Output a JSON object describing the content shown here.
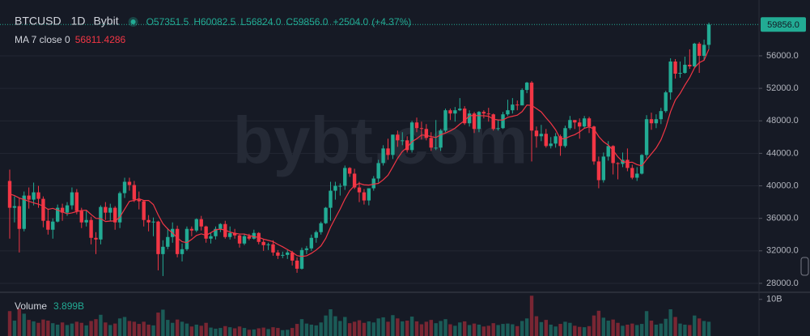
{
  "chart_data": {
    "type": "candlestick",
    "symbol": "BTCUSD",
    "interval": "1D",
    "exchange": "Bybit",
    "watermark": "bybt.com",
    "legend": {
      "open": {
        "value": 57351.5,
        "label": "O57351.5"
      },
      "high": {
        "value": 60082.5,
        "label": "H60082.5"
      },
      "low": {
        "value": 56824.0,
        "label": "L56824.0"
      },
      "close": {
        "value": 59856.0,
        "label": "C59856.0"
      },
      "change": {
        "value": 2504.0,
        "label": "+2504.0"
      },
      "change_pct": {
        "value": 4.37,
        "label": "(+4.37%)"
      }
    },
    "up_color": "#22ab94",
    "down_color": "#f23645",
    "open": [
      40600,
      37300,
      37500,
      34700,
      38800,
      38300,
      39200,
      38400,
      35700,
      34600,
      35600,
      37300,
      36700,
      37600,
      39200,
      36900,
      35500,
      35800,
      33600,
      33400,
      37400,
      36700,
      37300,
      35500,
      39100,
      40500,
      40100,
      38300,
      38100,
      35800,
      35500,
      35600,
      31600,
      32500,
      33700,
      34700,
      31600,
      32200,
      34700,
      34500,
      35900,
      35000,
      33500,
      33800,
      34700,
      35300,
      33700,
      34200,
      33900,
      32900,
      33800,
      33500,
      34200,
      33100,
      32700,
      32800,
      31800,
      31400,
      31500,
      31800,
      30800,
      29800,
      32100,
      32300,
      33600,
      34300,
      35400,
      37300,
      39400,
      40000,
      40000,
      42200,
      41500,
      39800,
      39200,
      38200,
      39700,
      40900,
      42800,
      44600,
      43800,
      46300,
      45600,
      45600,
      44400,
      47800,
      47100,
      47000,
      45900,
      44700,
      44700,
      46800,
      49300,
      48900,
      49300,
      49500,
      47700,
      48900,
      47000,
      49100,
      48900,
      48800,
      47000,
      47100,
      48800,
      49300,
      50000,
      49900,
      51800,
      52700,
      46800,
      46100,
      46400,
      44900,
      45200,
      46100,
      44900,
      47100,
      48100,
      47800,
      47300,
      48300,
      47300,
      43000,
      40700,
      43600,
      44900,
      42800,
      42700,
      43200,
      42200,
      41000,
      41500,
      43800,
      48200,
      47700,
      48200,
      49200,
      51500,
      55300,
      53800,
      53900,
      54900,
      54700,
      57500,
      56000,
      57351.5
    ],
    "high": [
      42000,
      38700,
      38500,
      39300,
      39800,
      40400,
      40000,
      38700,
      37200,
      36000,
      37700,
      37800,
      38000,
      39800,
      39600,
      37300,
      36900,
      36200,
      34300,
      37600,
      38000,
      37800,
      37500,
      39300,
      41000,
      41000,
      40600,
      39300,
      38200,
      36400,
      36100,
      35700,
      33300,
      34800,
      35500,
      35100,
      32900,
      35000,
      35000,
      36000,
      36300,
      35100,
      34200,
      35000,
      35400,
      35700,
      35000,
      34700,
      34000,
      34100,
      34100,
      34600,
      34300,
      33400,
      33000,
      33300,
      32100,
      31900,
      32100,
      32000,
      31200,
      32400,
      32600,
      34000,
      34500,
      35600,
      37400,
      40500,
      40500,
      40300,
      42500,
      42300,
      42100,
      40500,
      39600,
      39700,
      41200,
      43200,
      45000,
      45800,
      46300,
      46800,
      46600,
      46100,
      48000,
      48400,
      47900,
      47600,
      46600,
      48100,
      47000,
      49500,
      49500,
      49700,
      50800,
      49800,
      49300,
      49100,
      49200,
      49300,
      49600,
      48900,
      48100,
      49100,
      50600,
      50800,
      50500,
      52000,
      52800,
      52900,
      47300,
      47500,
      47000,
      46000,
      46500,
      46300,
      47400,
      48600,
      48100,
      48300,
      48600,
      48500,
      47400,
      43600,
      44100,
      45500,
      45000,
      42900,
      44100,
      44600,
      42600,
      42300,
      43900,
      48700,
      49000,
      48800,
      49600,
      51700,
      55700,
      55600,
      55300,
      55900,
      56800,
      57600,
      57700,
      58000,
      60082.5
    ],
    "low": [
      33500,
      35500,
      31800,
      34400,
      37200,
      37600,
      37300,
      34900,
      34000,
      33500,
      35500,
      35700,
      36300,
      37100,
      36500,
      34800,
      35000,
      32800,
      31600,
      32800,
      35800,
      35700,
      34600,
      34800,
      38500,
      39400,
      38000,
      37100,
      35000,
      34400,
      33800,
      29600,
      28900,
      32200,
      33000,
      31200,
      30700,
      32000,
      33800,
      34300,
      34500,
      33000,
      32900,
      33400,
      34300,
      33500,
      33400,
      33500,
      32400,
      32700,
      33300,
      33400,
      32800,
      32000,
      32100,
      31400,
      31000,
      31100,
      31000,
      30200,
      29300,
      29700,
      31600,
      32000,
      33000,
      34000,
      35300,
      35700,
      38300,
      38800,
      39500,
      41100,
      39600,
      38000,
      37700,
      37600,
      39400,
      40400,
      42500,
      43200,
      43300,
      44800,
      45000,
      44100,
      44100,
      46600,
      45700,
      45600,
      44300,
      44400,
      44300,
      46600,
      48100,
      47900,
      49200,
      47500,
      47300,
      46500,
      46600,
      48300,
      47900,
      46800,
      46800,
      47000,
      48600,
      48900,
      49300,
      49900,
      51400,
      43000,
      44700,
      45500,
      44700,
      44600,
      44700,
      43700,
      44700,
      46900,
      47000,
      45800,
      47100,
      46500,
      42600,
      39700,
      40400,
      43100,
      41400,
      40800,
      42300,
      41800,
      40800,
      40600,
      41400,
      43400,
      46900,
      47100,
      47600,
      49000,
      50600,
      53200,
      53300,
      53800,
      54400,
      54500,
      53900,
      55500,
      56824.0
    ],
    "close": [
      37300,
      37500,
      34700,
      38800,
      38300,
      39200,
      38400,
      35700,
      34600,
      35600,
      37300,
      36700,
      37600,
      39200,
      36900,
      35500,
      35800,
      33600,
      33400,
      37400,
      36700,
      37300,
      35500,
      39100,
      40500,
      40100,
      38300,
      38100,
      35800,
      35500,
      35600,
      31600,
      32500,
      33700,
      34700,
      31600,
      32200,
      34700,
      34500,
      35900,
      35000,
      33500,
      33800,
      34700,
      35300,
      33700,
      34200,
      33900,
      32900,
      33800,
      33500,
      34200,
      33100,
      32700,
      32800,
      31800,
      31400,
      31500,
      31800,
      30800,
      29800,
      32100,
      32300,
      33600,
      34300,
      35400,
      37300,
      39400,
      40000,
      40000,
      42200,
      41500,
      39800,
      39200,
      38200,
      39700,
      40900,
      42800,
      44600,
      43800,
      46300,
      45600,
      45600,
      44400,
      47800,
      47100,
      47000,
      45900,
      44700,
      44700,
      46800,
      49300,
      48900,
      49300,
      49500,
      47700,
      48900,
      47000,
      49100,
      48900,
      48800,
      47000,
      47100,
      48800,
      49300,
      50000,
      49900,
      51800,
      52700,
      46800,
      46100,
      46400,
      44900,
      45200,
      46100,
      44900,
      47100,
      48100,
      47800,
      47300,
      48300,
      47300,
      43000,
      40700,
      43600,
      44900,
      42800,
      42700,
      43200,
      42200,
      41000,
      41500,
      43800,
      48200,
      47700,
      48200,
      49200,
      51500,
      55300,
      53800,
      53900,
      54900,
      54700,
      57500,
      56000,
      57351.5,
      59856.0
    ],
    "ma": {
      "name": "MA 7 close 0",
      "color": "#f23645",
      "values": [
        39000,
        38800,
        38500,
        38300,
        38100,
        37900,
        37740,
        37510,
        37100,
        37230,
        37010,
        36790,
        36560,
        36670,
        36840,
        36970,
        37000,
        36470,
        36000,
        35970,
        35610,
        35670,
        35670,
        36140,
        37130,
        38090,
        38210,
        38410,
        38200,
        38200,
        37700,
        36430,
        35340,
        34690,
        34200,
        33600,
        33130,
        33000,
        33410,
        33900,
        34090,
        33910,
        34230,
        34590,
        34670,
        34560,
        34310,
        34160,
        34070,
        34070,
        33900,
        33740,
        33660,
        33440,
        33290,
        33130,
        32790,
        32500,
        32160,
        31830,
        31410,
        31310,
        31390,
        31700,
        32100,
        32610,
        33540,
        34910,
        36040,
        37140,
        38370,
        39400,
        40030,
        40300,
        40130,
        40090,
        40210,
        40300,
        40740,
        41310,
        42330,
        43390,
        44230,
        44730,
        45440,
        45800,
        46260,
        46200,
        46070,
        45940,
        46290,
        46500,
        46760,
        47090,
        47600,
        48030,
        48630,
        48660,
        48630,
        48630,
        48560,
        48200,
        48110,
        48100,
        48430,
        48560,
        48700,
        49130,
        49940,
        49900,
        49510,
        49100,
        48370,
        47700,
        46890,
        45770,
        45810,
        46100,
        46300,
        46640,
        47090,
        47260,
        46990,
        46070,
        45430,
        45010,
        44370,
        43570,
        42990,
        42870,
        42910,
        42610,
        42460,
        43230,
        43940,
        44660,
        45660,
        47160,
        49130,
        50560,
        51370,
        52400,
        53330,
        54510,
        55160,
        55450,
        56811.4286
      ]
    },
    "volume": {
      "name": "Volume",
      "current_label": "3.899B",
      "values": [
        6.8,
        4.2,
        7.5,
        6.1,
        4.4,
        4.0,
        3.6,
        4.5,
        4.2,
        3.5,
        3.1,
        3.7,
        3.0,
        3.4,
        3.9,
        3.6,
        2.9,
        4.1,
        4.6,
        5.8,
        3.7,
        3.0,
        3.4,
        4.8,
        5.2,
        4.1,
        3.9,
        3.3,
        3.9,
        3.1,
        2.9,
        6.4,
        7.2,
        4.4,
        3.6,
        4.5,
        3.9,
        3.4,
        2.6,
        3.1,
        2.8,
        3.6,
        2.3,
        2.0,
        2.2,
        2.7,
        2.4,
        2.1,
        2.6,
        2.2,
        1.7,
        1.8,
        2.1,
        2.3,
        1.9,
        2.4,
        2.2,
        1.6,
        1.7,
        2.2,
        3.3,
        4.6,
        3.4,
        3.1,
        2.9,
        3.7,
        5.6,
        7.3,
        5.4,
        4.1,
        5.2,
        3.5,
        3.9,
        4.3,
        3.6,
        4.0,
        3.7,
        4.8,
        5.1,
        3.9,
        5.7,
        4.8,
        4.0,
        4.2,
        5.3,
        4.0,
        3.2,
        3.9,
        4.4,
        3.5,
        4.1,
        4.6,
        3.2,
        2.8,
        3.7,
        4.0,
        3.0,
        3.4,
        3.1,
        2.6,
        2.8,
        3.5,
        3.0,
        3.3,
        3.4,
        3.2,
        2.7,
        4.1,
        4.8,
        11.0,
        5.4,
        3.8,
        4.4,
        3.1,
        2.6,
        3.3,
        3.9,
        3.6,
        2.8,
        2.5,
        2.4,
        2.7,
        5.6,
        6.9,
        5.0,
        4.2,
        4.5,
        3.6,
        2.8,
        3.1,
        3.4,
        3.0,
        3.3,
        6.8,
        4.2,
        3.1,
        3.4,
        4.7,
        7.3,
        5.2,
        3.4,
        3.1,
        3.0,
        5.6,
        4.8,
        4.1,
        3.899
      ]
    },
    "ylim": [
      27000,
      62870
    ],
    "yticks": [
      {
        "value": 28000,
        "label": "28000.0"
      },
      {
        "value": 32000,
        "label": "32000.0"
      },
      {
        "value": 36000,
        "label": "36000.0"
      },
      {
        "value": 40000,
        "label": "40000.0"
      },
      {
        "value": 44000,
        "label": "44000.0"
      },
      {
        "value": 48000,
        "label": "48000.0"
      },
      {
        "value": 52000,
        "label": "52000.0"
      },
      {
        "value": 56000,
        "label": "56000.0"
      }
    ],
    "y2lim": [
      0,
      11.5
    ],
    "y2ticks": [
      {
        "value": 10,
        "label": "10B"
      }
    ],
    "last_price": {
      "value": 59856.0,
      "label": "59856.0"
    },
    "grid": true
  }
}
